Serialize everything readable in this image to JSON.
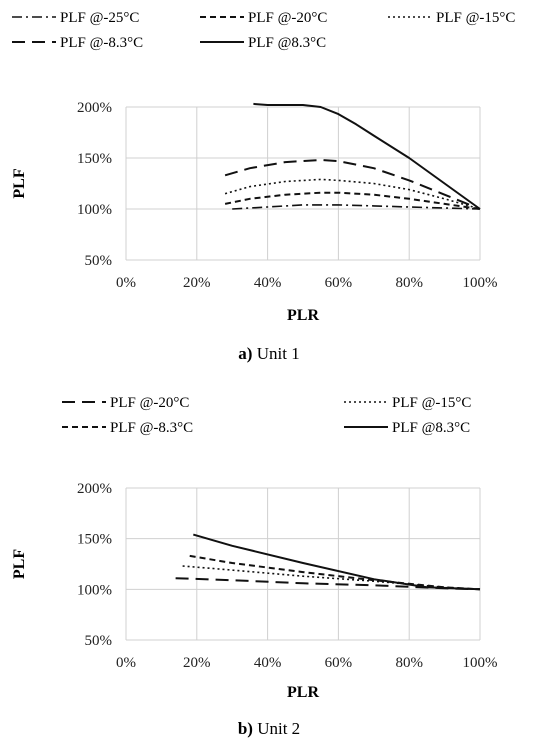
{
  "chart_data": [
    {
      "type": "line",
      "caption_label": "a)",
      "caption_text": " Unit 1",
      "xlabel": "PLR",
      "ylabel": "PLF",
      "xlim": [
        0,
        100
      ],
      "ylim": [
        50,
        200
      ],
      "x_ticks": [
        "0%",
        "20%",
        "40%",
        "60%",
        "80%",
        "100%"
      ],
      "y_ticks": [
        "50%",
        "100%",
        "150%",
        "200%"
      ],
      "grid": "vertical",
      "legend_position": "top",
      "series": [
        {
          "name": "PLF @-25°C",
          "style": "dashdot",
          "x": [
            30,
            40,
            50,
            55,
            60,
            70,
            80,
            90,
            100
          ],
          "y": [
            100,
            102,
            104,
            104,
            104,
            103,
            102,
            101,
            100
          ]
        },
        {
          "name": "PLF @-20°C",
          "style": "shortdash",
          "x": [
            28,
            35,
            45,
            55,
            60,
            70,
            80,
            90,
            100
          ],
          "y": [
            105,
            110,
            114,
            116,
            116,
            114,
            110,
            105,
            100
          ]
        },
        {
          "name": "PLF @-15°C",
          "style": "dotted",
          "x": [
            28,
            35,
            45,
            55,
            60,
            70,
            80,
            90,
            100
          ],
          "y": [
            115,
            122,
            127,
            129,
            128,
            125,
            119,
            110,
            100
          ]
        },
        {
          "name": "PLF @-8.3°C",
          "style": "longdash",
          "x": [
            28,
            35,
            45,
            55,
            60,
            70,
            80,
            90,
            100
          ],
          "y": [
            133,
            140,
            146,
            148,
            147,
            140,
            128,
            114,
            100
          ]
        },
        {
          "name": "PLF @8.3°C",
          "style": "solid",
          "x": [
            36,
            40,
            45,
            50,
            55,
            60,
            65,
            70,
            80,
            90,
            100
          ],
          "y": [
            203,
            202,
            202,
            202,
            200,
            193,
            183,
            172,
            150,
            125,
            100
          ]
        }
      ],
      "legend": [
        {
          "label": "PLF @-25°C",
          "style": "dashdot",
          "row": 0,
          "col": 0
        },
        {
          "label": "PLF @-20°C",
          "style": "shortdash",
          "row": 0,
          "col": 1
        },
        {
          "label": "PLF @-15°C",
          "style": "dotted",
          "row": 0,
          "col": 2
        },
        {
          "label": "PLF @-8.3°C",
          "style": "longdash",
          "row": 1,
          "col": 0
        },
        {
          "label": "PLF @8.3°C",
          "style": "solid",
          "row": 1,
          "col": 1
        }
      ]
    },
    {
      "type": "line",
      "caption_label": "b)",
      "caption_text": " Unit 2",
      "xlabel": "PLR",
      "ylabel": "PLF",
      "xlim": [
        0,
        100
      ],
      "ylim": [
        50,
        200
      ],
      "x_ticks": [
        "0%",
        "20%",
        "40%",
        "60%",
        "80%",
        "100%"
      ],
      "y_ticks": [
        "50%",
        "100%",
        "150%",
        "200%"
      ],
      "grid": "vertical",
      "legend_position": "top",
      "series": [
        {
          "name": "PLF @-20°C",
          "style": "longdash",
          "x": [
            14,
            30,
            50,
            70,
            90,
            100
          ],
          "y": [
            111,
            109,
            106,
            104,
            101,
            100
          ]
        },
        {
          "name": "PLF @-15°C",
          "style": "dotted",
          "x": [
            16,
            30,
            50,
            70,
            90,
            100
          ],
          "y": [
            123,
            119,
            113,
            108,
            102,
            100
          ]
        },
        {
          "name": "PLF @-8.3°C",
          "style": "shortdash",
          "x": [
            18,
            30,
            50,
            70,
            90,
            100
          ],
          "y": [
            133,
            126,
            117,
            109,
            102,
            100
          ]
        },
        {
          "name": "PLF @8.3°C",
          "style": "solid",
          "x": [
            19,
            30,
            50,
            70,
            85,
            100
          ],
          "y": [
            154,
            143,
            126,
            110,
            102,
            100
          ]
        }
      ],
      "legend": [
        {
          "label": "PLF @-20°C",
          "style": "longdash",
          "row": 0,
          "col": 0
        },
        {
          "label": "PLF @-15°C",
          "style": "dotted",
          "row": 0,
          "col": 2
        },
        {
          "label": "PLF @-8.3°C",
          "style": "shortdash",
          "row": 1,
          "col": 0
        },
        {
          "label": "PLF @8.3°C",
          "style": "solid",
          "row": 1,
          "col": 2
        }
      ]
    }
  ]
}
